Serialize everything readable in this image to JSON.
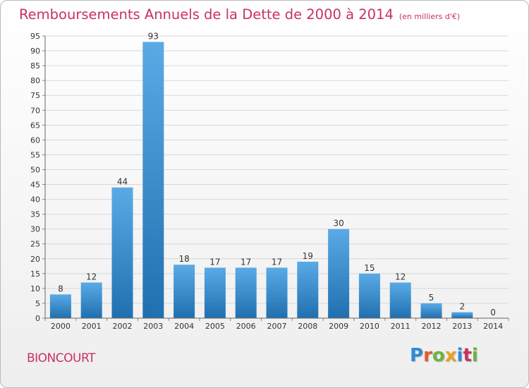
{
  "header": {
    "title": "Remboursements Annuels de la Dette de 2000 à 2014",
    "unit": "(en milliers d'€)"
  },
  "footer": {
    "town": "BIONCOURT",
    "logo_letters": [
      {
        "char": "P",
        "color": "#2e8bd8"
      },
      {
        "char": "r",
        "color": "#e05a2b"
      },
      {
        "char": "o",
        "color": "#6cb33f"
      },
      {
        "char": "x",
        "color": "#e8a21e"
      },
      {
        "char": "i",
        "color": "#2e8bd8"
      },
      {
        "char": "t",
        "color": "#c8325f"
      },
      {
        "char": "i",
        "color": "#6cb33f"
      }
    ]
  },
  "chart_data": {
    "type": "bar",
    "title": "Remboursements Annuels de la Dette de 2000 à 2014",
    "xlabel": "",
    "ylabel": "",
    "categories": [
      "2000",
      "2001",
      "2002",
      "2003",
      "2004",
      "2005",
      "2006",
      "2007",
      "2008",
      "2009",
      "2010",
      "2011",
      "2012",
      "2013",
      "2014"
    ],
    "values": [
      8,
      12,
      44,
      93,
      18,
      17,
      17,
      17,
      19,
      30,
      15,
      12,
      5,
      2,
      0
    ],
    "data_labels": [
      "8",
      "12",
      "44",
      "93",
      "18",
      "17",
      "17",
      "17",
      "19",
      "30",
      "15",
      "12",
      "5",
      "2",
      "0"
    ],
    "ylim": [
      0,
      95
    ],
    "yticks": [
      0,
      5,
      10,
      15,
      20,
      25,
      30,
      35,
      40,
      45,
      50,
      55,
      60,
      65,
      70,
      75,
      80,
      85,
      90,
      95
    ],
    "ytick_labels": [
      "0",
      "5",
      "10",
      "15",
      "20",
      "25",
      "30",
      "35",
      "40",
      "45",
      "50",
      "55",
      "60",
      "65",
      "70",
      "75",
      "80",
      "85",
      "90",
      "95"
    ],
    "grid": true,
    "bar_color_top": "#5aaae6",
    "bar_color_bottom": "#2070b0"
  }
}
